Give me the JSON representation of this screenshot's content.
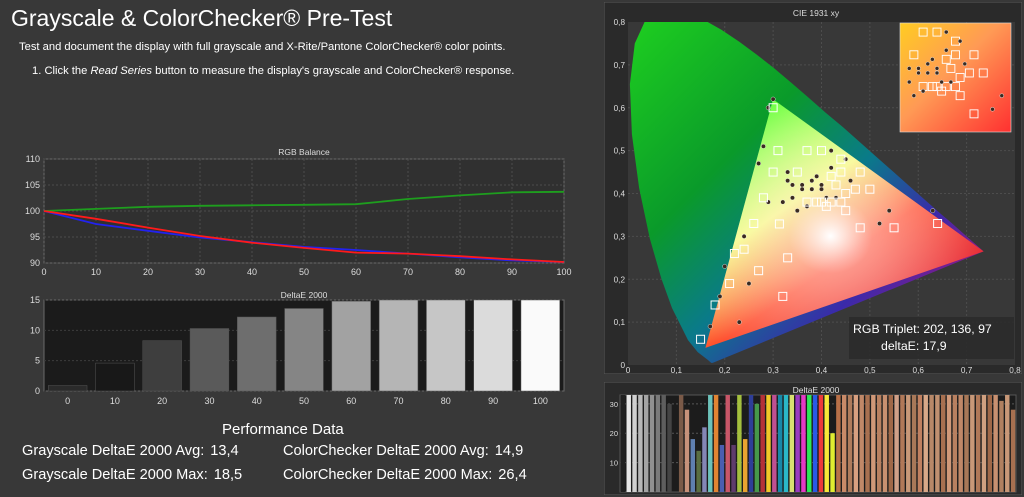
{
  "header": {
    "title": "Grayscale & ColorChecker® Pre-Test",
    "intro": "Test and document the display with full grayscale and X-Rite/Pantone ColorChecker® color points.",
    "step_prefix": "1. Click the ",
    "step_emphasis": "Read Series",
    "step_suffix": " button to measure the display's grayscale and ColorChecker® response."
  },
  "rgb_balance": {
    "title": "RGB Balance",
    "x_ticks": [
      "0",
      "10",
      "20",
      "30",
      "40",
      "50",
      "60",
      "70",
      "80",
      "90",
      "100"
    ],
    "y_ticks": [
      "110",
      "105",
      "100",
      "95",
      "90"
    ],
    "colors": {
      "red": "#ff1a1a",
      "green": "#1e9e1e",
      "blue": "#2222ee"
    }
  },
  "deltae_gray": {
    "title": "DeltaE 2000",
    "y_ticks": [
      "15",
      "10",
      "5",
      "0"
    ]
  },
  "cie": {
    "title": "CIE 1931 xy",
    "x_ticks": [
      "0",
      "0,1",
      "0,2",
      "0,3",
      "0,4",
      "0,5",
      "0,6",
      "0,7",
      "0,8"
    ],
    "y_ticks": [
      "0,8",
      "0,7",
      "0,6",
      "0,5",
      "0,4",
      "0,3",
      "0,2",
      "0,1",
      "0"
    ],
    "readout_line1": "RGB Triplet: 202, 136, 97",
    "readout_line2": "deltaE: 17,9"
  },
  "deltae_cc": {
    "title": "DeltaE 2000",
    "y_ticks": [
      "30",
      "20",
      "10"
    ],
    "bars": [
      {
        "v": 33,
        "c": "#202020"
      },
      {
        "v": 33,
        "c": "#e8e8e8"
      },
      {
        "v": 33,
        "c": "#d0d0d0"
      },
      {
        "v": 33,
        "c": "#b8b8b8"
      },
      {
        "v": 33,
        "c": "#a4a4a4"
      },
      {
        "v": 33,
        "c": "#909090"
      },
      {
        "v": 33,
        "c": "#7a7a7a"
      },
      {
        "v": 33,
        "c": "#5e5e5e"
      },
      {
        "v": 30,
        "c": "#444444"
      },
      {
        "v": 0,
        "c": "#2a2a2a"
      },
      {
        "v": 33,
        "c": "#7a5a48"
      },
      {
        "v": 28,
        "c": "#c8927a"
      },
      {
        "v": 18,
        "c": "#5f7fb0"
      },
      {
        "v": 14,
        "c": "#5a6e42"
      },
      {
        "v": 22,
        "c": "#8486b6"
      },
      {
        "v": 33,
        "c": "#6cc2ba"
      },
      {
        "v": 33,
        "c": "#e28432"
      },
      {
        "v": 16,
        "c": "#4a5eb0"
      },
      {
        "v": 33,
        "c": "#c85668"
      },
      {
        "v": 16,
        "c": "#5e3c6c"
      },
      {
        "v": 33,
        "c": "#a4c03e"
      },
      {
        "v": 18,
        "c": "#e8a430"
      },
      {
        "v": 33,
        "c": "#2e3e98"
      },
      {
        "v": 30,
        "c": "#46984a"
      },
      {
        "v": 33,
        "c": "#b43238"
      },
      {
        "v": 33,
        "c": "#f0c828"
      },
      {
        "v": 33,
        "c": "#c05092"
      },
      {
        "v": 33,
        "c": "#1888a8"
      },
      {
        "v": 33,
        "c": "#2ab8c8"
      },
      {
        "v": 33,
        "c": "#d8e070"
      },
      {
        "v": 33,
        "c": "#9a3ac0"
      },
      {
        "v": 33,
        "c": "#e63ac6"
      },
      {
        "v": 33,
        "c": "#2ee858"
      },
      {
        "v": 33,
        "c": "#2a5ae6"
      },
      {
        "v": 33,
        "c": "#ec3a3a"
      },
      {
        "v": 33,
        "c": "#f8e838"
      },
      {
        "v": 20,
        "c": "#e0ec30"
      },
      {
        "v": 33,
        "c": "#b87048"
      },
      {
        "v": 33,
        "c": "#c88a68"
      },
      {
        "v": 33,
        "c": "#b07c5c"
      },
      {
        "v": 33,
        "c": "#d8a080"
      },
      {
        "v": 33,
        "c": "#c08868"
      },
      {
        "v": 33,
        "c": "#a87050"
      },
      {
        "v": 33,
        "c": "#d09878"
      },
      {
        "v": 33,
        "c": "#b88060"
      },
      {
        "v": 33,
        "c": "#c89070"
      },
      {
        "v": 33,
        "c": "#a06848"
      },
      {
        "v": 33,
        "c": "#d0a088"
      },
      {
        "v": 33,
        "c": "#b07858"
      },
      {
        "v": 33,
        "c": "#c89878"
      },
      {
        "v": 33,
        "c": "#a87858"
      },
      {
        "v": 33,
        "c": "#c08060"
      },
      {
        "v": 33,
        "c": "#d8a888"
      },
      {
        "v": 33,
        "c": "#b88868"
      },
      {
        "v": 33,
        "c": "#c09070"
      },
      {
        "v": 33,
        "c": "#a87050"
      },
      {
        "v": 33,
        "c": "#d09878"
      },
      {
        "v": 33,
        "c": "#b88060"
      },
      {
        "v": 33,
        "c": "#c08868"
      },
      {
        "v": 33,
        "c": "#a87858"
      },
      {
        "v": 33,
        "c": "#c89878"
      },
      {
        "v": 33,
        "c": "#b07858"
      },
      {
        "v": 33,
        "c": "#d0a080"
      },
      {
        "v": 33,
        "c": "#a06848"
      },
      {
        "v": 33,
        "c": "#c89070"
      },
      {
        "v": 31,
        "c": "#b08060"
      },
      {
        "v": 33,
        "c": "#c89878"
      },
      {
        "v": 28,
        "c": "#a87050"
      }
    ]
  },
  "performance": {
    "title": "Performance Data",
    "gray_avg_label": "Grayscale DeltaE 2000 Avg:",
    "gray_avg_value": "13,4",
    "gray_max_label": "Grayscale DeltaE 2000 Max:",
    "gray_max_value": "18,5",
    "cc_avg_label": "ColorChecker DeltaE 2000 Avg:",
    "cc_avg_value": "14,9",
    "cc_max_label": "ColorChecker DeltaE 2000 Max:",
    "cc_max_value": "26,4"
  },
  "chart_data": [
    {
      "type": "line",
      "title": "RGB Balance",
      "x": [
        0,
        10,
        20,
        30,
        40,
        50,
        60,
        70,
        80,
        90,
        100
      ],
      "xlim": [
        0,
        100
      ],
      "ylim": [
        90,
        110
      ],
      "series": [
        {
          "name": "",
          "color": "red",
          "values": [
            100,
            98.5,
            96.8,
            95.2,
            93.9,
            92.9,
            92.0,
            91.8,
            91.3,
            90.7,
            90.2
          ]
        },
        {
          "name": "",
          "color": "green",
          "values": [
            100,
            100.4,
            100.8,
            101.0,
            101.1,
            101.2,
            101.3,
            102.3,
            103.0,
            103.6,
            103.7
          ]
        },
        {
          "name": "",
          "color": "blue",
          "values": [
            100,
            97.5,
            96.2,
            94.9,
            94.0,
            93.1,
            92.5,
            91.8,
            91.1,
            90.5,
            90.2
          ]
        }
      ]
    },
    {
      "type": "bar",
      "title": "DeltaE 2000",
      "categories": [
        "0",
        "10",
        "20",
        "30",
        "40",
        "50",
        "60",
        "70",
        "80",
        "90",
        "100"
      ],
      "values": [
        0.9,
        4.6,
        8.3,
        10.3,
        12.2,
        13.6,
        14.8,
        15.0,
        15.0,
        15.0,
        15.0
      ],
      "colors": [
        "#2b2b2b",
        "#181818",
        "#3e3e3e",
        "#5a5a5a",
        "#6e6e6e",
        "#858585",
        "#a2a2a2",
        "#b5b5b5",
        "#c6c6c6",
        "#dbdbdb",
        "#fafafa"
      ],
      "ylim": [
        0,
        15
      ]
    },
    {
      "type": "scatter",
      "title": "CIE 1931 xy",
      "xlim": [
        0,
        0.8
      ],
      "ylim": [
        0,
        0.8
      ],
      "primaries": [
        [
          0.64,
          0.33
        ],
        [
          0.3,
          0.6
        ],
        [
          0.15,
          0.06
        ]
      ],
      "measured_squares": [
        [
          0.313,
          0.329
        ],
        [
          0.64,
          0.33
        ],
        [
          0.3,
          0.6
        ],
        [
          0.15,
          0.06
        ],
        [
          0.37,
          0.38
        ],
        [
          0.42,
          0.38
        ],
        [
          0.31,
          0.5
        ],
        [
          0.28,
          0.39
        ],
        [
          0.3,
          0.45
        ],
        [
          0.26,
          0.33
        ],
        [
          0.22,
          0.26
        ],
        [
          0.24,
          0.27
        ],
        [
          0.21,
          0.19
        ],
        [
          0.18,
          0.14
        ],
        [
          0.27,
          0.22
        ],
        [
          0.33,
          0.25
        ],
        [
          0.32,
          0.16
        ],
        [
          0.41,
          0.37
        ],
        [
          0.43,
          0.42
        ],
        [
          0.45,
          0.4
        ],
        [
          0.47,
          0.41
        ],
        [
          0.5,
          0.41
        ],
        [
          0.48,
          0.32
        ],
        [
          0.55,
          0.32
        ],
        [
          0.42,
          0.44
        ],
        [
          0.4,
          0.5
        ],
        [
          0.37,
          0.5
        ],
        [
          0.35,
          0.45
        ],
        [
          0.44,
          0.45
        ],
        [
          0.39,
          0.38
        ],
        [
          0.44,
          0.38
        ],
        [
          0.45,
          0.36
        ],
        [
          0.4,
          0.38
        ],
        [
          0.48,
          0.45
        ],
        [
          0.44,
          0.48
        ]
      ],
      "measured_dots": [
        [
          0.29,
          0.38
        ],
        [
          0.32,
          0.38
        ],
        [
          0.34,
          0.39
        ],
        [
          0.36,
          0.42
        ],
        [
          0.38,
          0.43
        ],
        [
          0.4,
          0.42
        ],
        [
          0.42,
          0.46
        ],
        [
          0.35,
          0.36
        ],
        [
          0.37,
          0.37
        ],
        [
          0.38,
          0.41
        ],
        [
          0.4,
          0.41
        ],
        [
          0.33,
          0.45
        ],
        [
          0.28,
          0.51
        ],
        [
          0.33,
          0.43
        ],
        [
          0.34,
          0.42
        ],
        [
          0.41,
          0.39
        ],
        [
          0.43,
          0.39
        ],
        [
          0.46,
          0.43
        ],
        [
          0.52,
          0.33
        ],
        [
          0.54,
          0.36
        ],
        [
          0.27,
          0.47
        ],
        [
          0.2,
          0.23
        ],
        [
          0.24,
          0.3
        ],
        [
          0.19,
          0.16
        ],
        [
          0.25,
          0.19
        ],
        [
          0.17,
          0.09
        ],
        [
          0.23,
          0.1
        ],
        [
          0.63,
          0.36
        ],
        [
          0.36,
          0.41
        ],
        [
          0.39,
          0.44
        ],
        [
          0.42,
          0.5
        ],
        [
          0.45,
          0.48
        ],
        [
          0.29,
          0.6
        ],
        [
          0.3,
          0.62
        ]
      ]
    },
    {
      "type": "bar",
      "title": "DeltaE 2000",
      "ylim": [
        0,
        33
      ],
      "values_source": "deltae_cc.bars"
    }
  ]
}
